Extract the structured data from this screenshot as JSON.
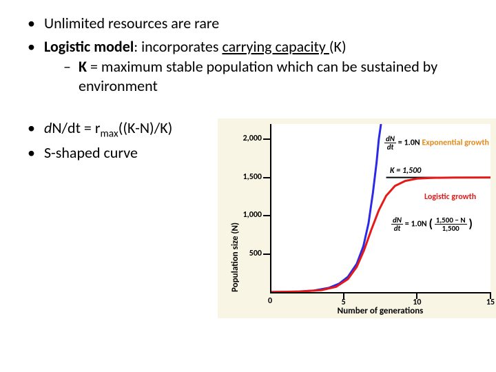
{
  "bullets": {
    "b1": "Unlimited resources are rare",
    "b2_part1": "Logistic model",
    "b2_part2": ": incorporates ",
    "b2_part3": "carrying capacity ",
    "b2_part4": "(K)",
    "b2_sub_pre": "K",
    "b2_sub_post": " = maximum stable population which can be sustained by environment",
    "b3_pre": "d",
    "b3_N": "N/dt = r",
    "b3_sub": "max",
    "b3_post": "((K-N)/K)",
    "b4": "S-shaped curve"
  },
  "chart": {
    "type": "line",
    "background_color": "#f8f5e5",
    "plot_background": "#ffffff",
    "axis_color": "#000000",
    "xlabel": "Number of generations",
    "ylabel": "Population size (N)",
    "label_fontsize": 13,
    "tick_fontsize": 12,
    "xlim": [
      0,
      15
    ],
    "ylim": [
      0,
      2200
    ],
    "xticks": [
      0,
      5,
      10,
      15
    ],
    "yticks": [
      0,
      500,
      1000,
      1500,
      2000
    ],
    "ytick_labels": [
      "0",
      "500",
      "1,000",
      "1,500",
      "2,000"
    ],
    "series": {
      "exponential": {
        "color": "#2a2ae6",
        "width": 3,
        "points": [
          [
            0,
            1
          ],
          [
            1,
            2.7
          ],
          [
            2,
            7.4
          ],
          [
            3,
            20
          ],
          [
            4,
            55
          ],
          [
            4.7,
            110
          ],
          [
            5.3,
            200
          ],
          [
            5.9,
            370
          ],
          [
            6.35,
            600
          ],
          [
            6.7,
            900
          ],
          [
            7.0,
            1300
          ],
          [
            7.25,
            1700
          ],
          [
            7.4,
            2000
          ],
          [
            7.55,
            2200
          ]
        ]
      },
      "logistic": {
        "color": "#e61919",
        "width": 3,
        "k": 1500,
        "points": [
          [
            0,
            1
          ],
          [
            2,
            7
          ],
          [
            3.5,
            26
          ],
          [
            4.5,
            70
          ],
          [
            5.3,
            170
          ],
          [
            5.9,
            330
          ],
          [
            6.4,
            550
          ],
          [
            6.9,
            820
          ],
          [
            7.4,
            1070
          ],
          [
            7.9,
            1260
          ],
          [
            8.5,
            1390
          ],
          [
            9.2,
            1455
          ],
          [
            10,
            1485
          ],
          [
            11,
            1495
          ],
          [
            12.5,
            1499
          ],
          [
            15,
            1500
          ]
        ]
      },
      "k_line": {
        "color": "#000000",
        "width": 2,
        "y": 1500,
        "x_start": 7.9,
        "x_end": 15
      }
    },
    "annotations": {
      "exp_label": {
        "text": "Exponential growth",
        "color": "#e08b1e"
      },
      "exp_eq_lhs_num": "dN",
      "exp_eq_lhs_den": "dt",
      "exp_eq_rhs": "= 1.0N",
      "k_label": "K = 1,500",
      "log_label": {
        "text": "Logistic growth",
        "color": "#e61919"
      },
      "log_eq_lhs_num": "dN",
      "log_eq_lhs_den": "dt",
      "log_eq_mid": "= 1.0N",
      "log_eq_frac_num": "1,500 − N",
      "log_eq_frac_den": "1,500",
      "log_eq_lparen": "(",
      "log_eq_rparen": ")"
    }
  }
}
